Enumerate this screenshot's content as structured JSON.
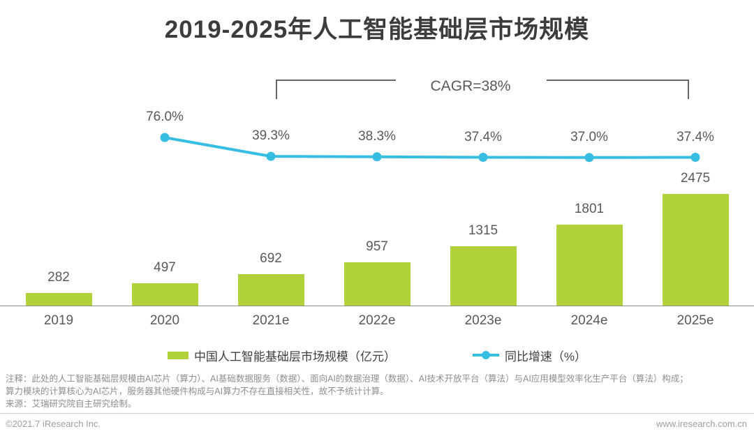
{
  "page": {
    "title": "2019-2025年人工智能基础层市场规模",
    "footer_left": "©2021.7 iResearch Inc.",
    "footer_right": "www.iresearch.com.cn"
  },
  "annotation": {
    "cagr_label": "CAGR=38%"
  },
  "colors": {
    "bar": "#b2d23c",
    "line": "#35bee2"
  },
  "notes": {
    "line1": "注释：此处的人工智能基础层规模由AI芯片（算力）、AI基础数据服务（数据）、面向AI的数据治理（数据）、AI技术开放平台（算法）与AI应用模型效率化生产平台（算法）构成；",
    "line2": "算力模块的计算核心为AI芯片，服务器其他硬件构成与AI算力不存在直接相关性，故不予统计计算。",
    "source": "来源：艾瑞研究院自主研究绘制。"
  },
  "chart_data": {
    "type": "bar",
    "subtype": "bar+line combo",
    "title": "2019-2025年人工智能基础层市场规模",
    "categories": [
      "2019",
      "2020",
      "2021e",
      "2022e",
      "2023e",
      "2024e",
      "2025e"
    ],
    "series": [
      {
        "name": "中国人工智能基础层市场规模（亿元）",
        "type": "bar",
        "values": [
          282,
          497,
          692,
          957,
          1315,
          1801,
          2475
        ]
      },
      {
        "name": "同比增速（%）",
        "type": "line",
        "categories": [
          "2020",
          "2021e",
          "2022e",
          "2023e",
          "2024e",
          "2025e"
        ],
        "values": [
          76.0,
          39.3,
          38.3,
          37.4,
          37.0,
          37.4
        ]
      }
    ],
    "annotations": [
      "CAGR=38%"
    ],
    "xlabel": "",
    "ylabel": "",
    "y_axis_visible": false,
    "grid": false,
    "legend_position": "bottom",
    "data_labels": true
  }
}
